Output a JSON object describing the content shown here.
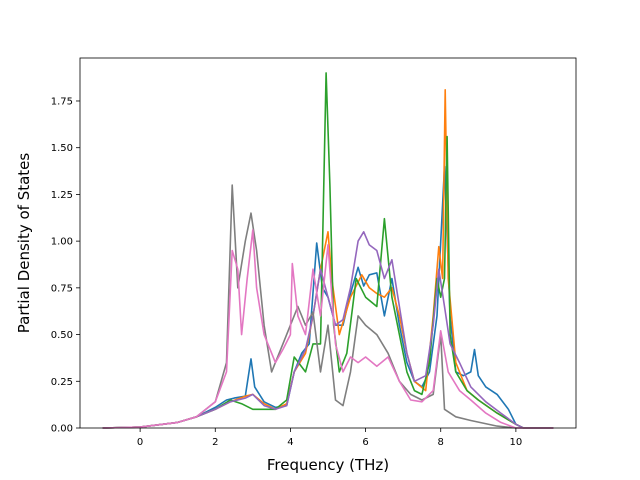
{
  "chart_data": {
    "type": "line",
    "title": "",
    "xlabel": "Frequency (THz)",
    "ylabel": "Partial Density of States",
    "xlim": [
      -1.6,
      11.6
    ],
    "ylim": [
      0.0,
      1.98
    ],
    "xticks": [
      0,
      2,
      4,
      6,
      8,
      10
    ],
    "yticks": [
      0.0,
      0.25,
      0.5,
      0.75,
      1.0,
      1.25,
      1.5,
      1.75
    ],
    "xtick_labels": [
      "0",
      "2",
      "4",
      "6",
      "8",
      "10"
    ],
    "ytick_labels": [
      "0.00",
      "0.25",
      "0.50",
      "0.75",
      "1.00",
      "1.25",
      "1.50",
      "1.75"
    ],
    "grid": false,
    "legend": "none",
    "series": [
      {
        "color": "#1f77b4",
        "points": [
          [
            -1.0,
            0
          ],
          [
            0,
            0.005
          ],
          [
            1.0,
            0.03
          ],
          [
            1.5,
            0.06
          ],
          [
            2.0,
            0.11
          ],
          [
            2.3,
            0.15
          ],
          [
            2.5,
            0.16
          ],
          [
            2.8,
            0.17
          ],
          [
            2.95,
            0.37
          ],
          [
            3.05,
            0.22
          ],
          [
            3.3,
            0.14
          ],
          [
            3.6,
            0.11
          ],
          [
            3.9,
            0.12
          ],
          [
            4.1,
            0.3
          ],
          [
            4.3,
            0.4
          ],
          [
            4.5,
            0.45
          ],
          [
            4.7,
            0.99
          ],
          [
            4.85,
            0.75
          ],
          [
            5.0,
            0.7
          ],
          [
            5.2,
            0.55
          ],
          [
            5.4,
            0.55
          ],
          [
            5.6,
            0.72
          ],
          [
            5.8,
            0.86
          ],
          [
            5.95,
            0.76
          ],
          [
            6.1,
            0.82
          ],
          [
            6.3,
            0.83
          ],
          [
            6.5,
            0.6
          ],
          [
            6.7,
            0.8
          ],
          [
            6.9,
            0.55
          ],
          [
            7.1,
            0.35
          ],
          [
            7.3,
            0.25
          ],
          [
            7.5,
            0.22
          ],
          [
            7.7,
            0.3
          ],
          [
            7.9,
            0.6
          ],
          [
            8.1,
            1.4
          ],
          [
            8.25,
            0.6
          ],
          [
            8.4,
            0.3
          ],
          [
            8.6,
            0.28
          ],
          [
            8.8,
            0.3
          ],
          [
            8.9,
            0.42
          ],
          [
            9.0,
            0.28
          ],
          [
            9.2,
            0.22
          ],
          [
            9.5,
            0.18
          ],
          [
            9.8,
            0.1
          ],
          [
            10.0,
            0.02
          ],
          [
            10.2,
            0
          ],
          [
            11.0,
            0
          ]
        ]
      },
      {
        "color": "#ff7f0e",
        "points": [
          [
            -1.0,
            0
          ],
          [
            0,
            0.005
          ],
          [
            1.0,
            0.03
          ],
          [
            1.5,
            0.06
          ],
          [
            2.0,
            0.1
          ],
          [
            2.4,
            0.14
          ],
          [
            2.8,
            0.17
          ],
          [
            3.0,
            0.18
          ],
          [
            3.3,
            0.13
          ],
          [
            3.6,
            0.1
          ],
          [
            3.9,
            0.13
          ],
          [
            4.1,
            0.3
          ],
          [
            4.4,
            0.4
          ],
          [
            4.6,
            0.6
          ],
          [
            4.8,
            0.85
          ],
          [
            5.0,
            1.05
          ],
          [
            5.1,
            0.8
          ],
          [
            5.3,
            0.5
          ],
          [
            5.6,
            0.7
          ],
          [
            5.9,
            0.82
          ],
          [
            6.1,
            0.75
          ],
          [
            6.3,
            0.72
          ],
          [
            6.5,
            0.7
          ],
          [
            6.7,
            0.75
          ],
          [
            6.9,
            0.6
          ],
          [
            7.1,
            0.4
          ],
          [
            7.3,
            0.25
          ],
          [
            7.6,
            0.2
          ],
          [
            7.8,
            0.6
          ],
          [
            7.95,
            0.97
          ],
          [
            8.05,
            0.8
          ],
          [
            8.12,
            1.81
          ],
          [
            8.2,
            0.8
          ],
          [
            8.4,
            0.35
          ],
          [
            8.7,
            0.2
          ],
          [
            9.0,
            0.15
          ],
          [
            9.5,
            0.08
          ],
          [
            10.0,
            0.02
          ],
          [
            10.2,
            0
          ],
          [
            11.0,
            0
          ]
        ]
      },
      {
        "color": "#2ca02c",
        "points": [
          [
            -1.0,
            0
          ],
          [
            0,
            0.005
          ],
          [
            1.0,
            0.03
          ],
          [
            1.5,
            0.06
          ],
          [
            2.0,
            0.1
          ],
          [
            2.4,
            0.15
          ],
          [
            2.7,
            0.13
          ],
          [
            3.0,
            0.1
          ],
          [
            3.3,
            0.1
          ],
          [
            3.6,
            0.1
          ],
          [
            3.9,
            0.15
          ],
          [
            4.1,
            0.38
          ],
          [
            4.4,
            0.3
          ],
          [
            4.6,
            0.45
          ],
          [
            4.8,
            0.45
          ],
          [
            4.95,
            1.9
          ],
          [
            5.05,
            1.3
          ],
          [
            5.15,
            0.55
          ],
          [
            5.3,
            0.3
          ],
          [
            5.5,
            0.4
          ],
          [
            5.75,
            0.8
          ],
          [
            6.0,
            0.7
          ],
          [
            6.3,
            0.65
          ],
          [
            6.5,
            1.12
          ],
          [
            6.7,
            0.7
          ],
          [
            6.9,
            0.5
          ],
          [
            7.1,
            0.3
          ],
          [
            7.3,
            0.2
          ],
          [
            7.5,
            0.18
          ],
          [
            7.7,
            0.35
          ],
          [
            7.9,
            0.8
          ],
          [
            8.0,
            0.7
          ],
          [
            8.1,
            0.8
          ],
          [
            8.17,
            1.56
          ],
          [
            8.25,
            0.5
          ],
          [
            8.4,
            0.3
          ],
          [
            8.7,
            0.2
          ],
          [
            9.0,
            0.15
          ],
          [
            9.5,
            0.08
          ],
          [
            10.0,
            0.02
          ],
          [
            10.2,
            0
          ],
          [
            11.0,
            0
          ]
        ]
      },
      {
        "color": "#9467bd",
        "points": [
          [
            -1.0,
            0
          ],
          [
            0,
            0.005
          ],
          [
            1.0,
            0.03
          ],
          [
            1.5,
            0.06
          ],
          [
            2.0,
            0.1
          ],
          [
            2.4,
            0.14
          ],
          [
            2.8,
            0.16
          ],
          [
            3.0,
            0.18
          ],
          [
            3.3,
            0.12
          ],
          [
            3.6,
            0.1
          ],
          [
            3.9,
            0.12
          ],
          [
            4.1,
            0.3
          ],
          [
            4.4,
            0.42
          ],
          [
            4.6,
            0.6
          ],
          [
            4.8,
            0.85
          ],
          [
            5.0,
            0.7
          ],
          [
            5.2,
            0.55
          ],
          [
            5.4,
            0.58
          ],
          [
            5.6,
            0.75
          ],
          [
            5.8,
            1.0
          ],
          [
            5.95,
            1.05
          ],
          [
            6.1,
            0.98
          ],
          [
            6.3,
            0.95
          ],
          [
            6.5,
            0.8
          ],
          [
            6.7,
            0.9
          ],
          [
            6.9,
            0.65
          ],
          [
            7.1,
            0.4
          ],
          [
            7.3,
            0.25
          ],
          [
            7.6,
            0.28
          ],
          [
            7.8,
            0.55
          ],
          [
            7.95,
            0.85
          ],
          [
            8.1,
            0.65
          ],
          [
            8.25,
            0.45
          ],
          [
            8.5,
            0.35
          ],
          [
            8.8,
            0.22
          ],
          [
            9.2,
            0.14
          ],
          [
            9.6,
            0.08
          ],
          [
            10.0,
            0.02
          ],
          [
            10.2,
            0
          ],
          [
            11.0,
            0
          ]
        ]
      },
      {
        "color": "#7f7f7f",
        "points": [
          [
            -1.0,
            0
          ],
          [
            0,
            0.005
          ],
          [
            1.0,
            0.03
          ],
          [
            1.5,
            0.06
          ],
          [
            2.0,
            0.14
          ],
          [
            2.3,
            0.35
          ],
          [
            2.45,
            1.3
          ],
          [
            2.6,
            0.75
          ],
          [
            2.8,
            1.0
          ],
          [
            2.95,
            1.15
          ],
          [
            3.1,
            0.95
          ],
          [
            3.3,
            0.55
          ],
          [
            3.5,
            0.3
          ],
          [
            3.8,
            0.45
          ],
          [
            4.0,
            0.55
          ],
          [
            4.2,
            0.65
          ],
          [
            4.4,
            0.55
          ],
          [
            4.6,
            0.62
          ],
          [
            4.8,
            0.3
          ],
          [
            5.0,
            0.55
          ],
          [
            5.2,
            0.15
          ],
          [
            5.4,
            0.12
          ],
          [
            5.6,
            0.3
          ],
          [
            5.8,
            0.6
          ],
          [
            6.0,
            0.55
          ],
          [
            6.3,
            0.5
          ],
          [
            6.6,
            0.4
          ],
          [
            6.9,
            0.25
          ],
          [
            7.2,
            0.18
          ],
          [
            7.5,
            0.15
          ],
          [
            7.8,
            0.18
          ],
          [
            8.0,
            0.5
          ],
          [
            8.1,
            0.1
          ],
          [
            8.4,
            0.06
          ],
          [
            8.8,
            0.04
          ],
          [
            9.5,
            0.01
          ],
          [
            10.0,
            0
          ],
          [
            11.0,
            0
          ]
        ]
      },
      {
        "color": "#e377c2",
        "points": [
          [
            -1.0,
            0
          ],
          [
            0,
            0.005
          ],
          [
            1.0,
            0.03
          ],
          [
            1.5,
            0.06
          ],
          [
            2.0,
            0.14
          ],
          [
            2.3,
            0.3
          ],
          [
            2.45,
            0.95
          ],
          [
            2.6,
            0.85
          ],
          [
            2.7,
            0.5
          ],
          [
            2.85,
            0.8
          ],
          [
            3.0,
            1.06
          ],
          [
            3.1,
            0.75
          ],
          [
            3.3,
            0.5
          ],
          [
            3.6,
            0.35
          ],
          [
            3.8,
            0.42
          ],
          [
            4.0,
            0.5
          ],
          [
            4.05,
            0.88
          ],
          [
            4.2,
            0.6
          ],
          [
            4.4,
            0.5
          ],
          [
            4.6,
            0.85
          ],
          [
            4.8,
            0.6
          ],
          [
            5.0,
            0.98
          ],
          [
            5.2,
            0.45
          ],
          [
            5.4,
            0.3
          ],
          [
            5.6,
            0.38
          ],
          [
            5.8,
            0.35
          ],
          [
            6.0,
            0.38
          ],
          [
            6.3,
            0.33
          ],
          [
            6.6,
            0.38
          ],
          [
            6.9,
            0.25
          ],
          [
            7.2,
            0.15
          ],
          [
            7.5,
            0.14
          ],
          [
            7.8,
            0.2
          ],
          [
            8.0,
            0.52
          ],
          [
            8.2,
            0.3
          ],
          [
            8.5,
            0.2
          ],
          [
            8.8,
            0.15
          ],
          [
            9.2,
            0.08
          ],
          [
            9.6,
            0.03
          ],
          [
            10.0,
            0
          ],
          [
            11.0,
            0
          ]
        ]
      }
    ]
  }
}
